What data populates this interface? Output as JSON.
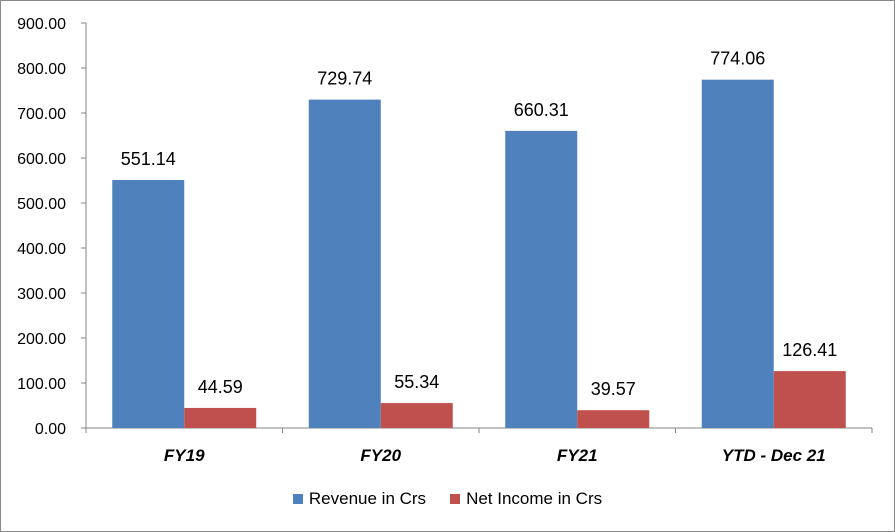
{
  "chart_data": {
    "type": "bar",
    "title": "",
    "xlabel": "",
    "ylabel": "",
    "ylim": [
      0,
      900
    ],
    "yticks": [
      "0.00",
      "100.00",
      "200.00",
      "300.00",
      "400.00",
      "500.00",
      "600.00",
      "700.00",
      "800.00",
      "900.00"
    ],
    "ytick_values": [
      0,
      100,
      200,
      300,
      400,
      500,
      600,
      700,
      800,
      900
    ],
    "categories": [
      "FY19",
      "FY20",
      "FY21",
      "YTD - Dec 21"
    ],
    "series": [
      {
        "name": "Revenue in Crs",
        "color": "#4F81BD",
        "values": [
          551.14,
          729.74,
          660.31,
          774.06
        ],
        "labels": [
          "551.14",
          "729.74",
          "660.31",
          "774.06"
        ]
      },
      {
        "name": "Net Income in Crs",
        "color": "#C0504D",
        "values": [
          44.59,
          55.34,
          39.57,
          126.41
        ],
        "labels": [
          "44.59",
          "55.34",
          "39.57",
          "126.41"
        ]
      }
    ],
    "grid": false,
    "legend_position": "bottom"
  }
}
